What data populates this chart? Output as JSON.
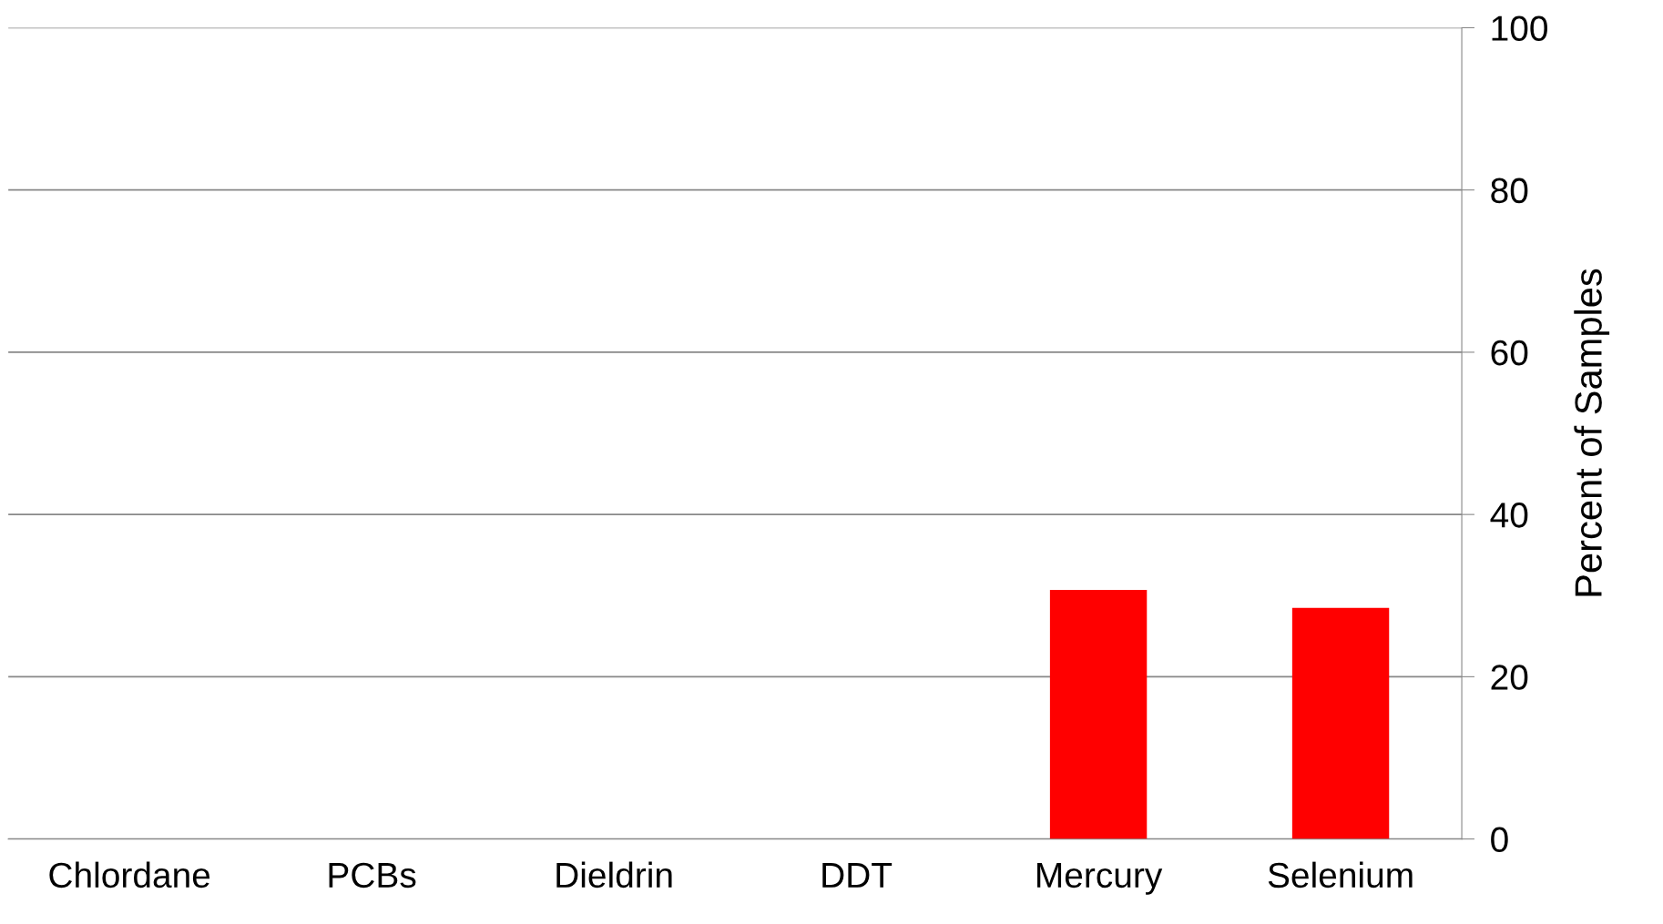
{
  "chart_data": {
    "type": "bar",
    "ylabel": "Percent of Samples",
    "categories": [
      "Chlordane",
      "PCBs",
      "Dieldrin",
      "DDT",
      "Mercury",
      "Selenium"
    ],
    "values": [
      0,
      0,
      0,
      0,
      30.7,
      28.5
    ],
    "color": "#ff0000",
    "ylim": [
      0,
      100
    ],
    "yticks": [
      0,
      20,
      40,
      60,
      80,
      100
    ],
    "grid": "y"
  }
}
